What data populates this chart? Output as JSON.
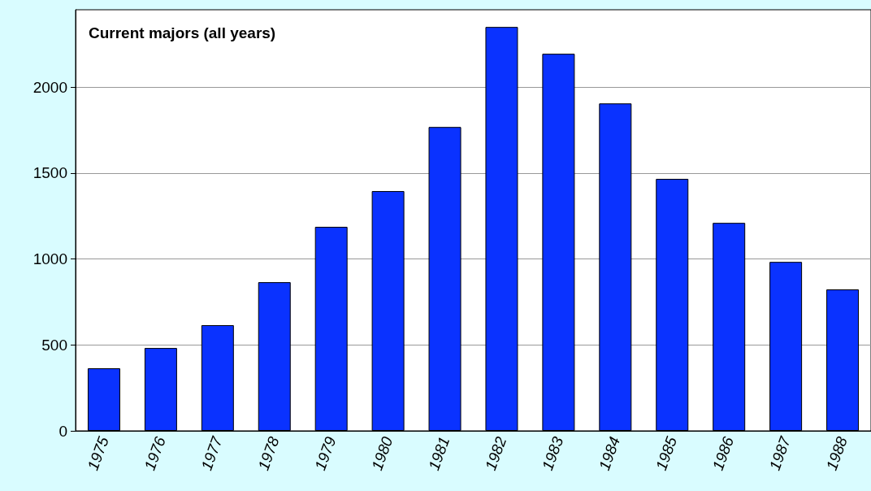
{
  "chart_data": {
    "type": "bar",
    "title": "Current majors (all years)",
    "categories": [
      "1975",
      "1976",
      "1977",
      "1978",
      "1979",
      "1980",
      "1981",
      "1982",
      "1983",
      "1984",
      "1985",
      "1986",
      "1987",
      "1988"
    ],
    "values": [
      364,
      482,
      615,
      865,
      1187,
      1395,
      1768,
      2350,
      2194,
      1905,
      1466,
      1210,
      983,
      823
    ],
    "color": "#0a32ff",
    "ylim": [
      0,
      2450
    ],
    "yticks": [
      0,
      500,
      1000,
      1500,
      2000
    ],
    "grid": "y"
  }
}
